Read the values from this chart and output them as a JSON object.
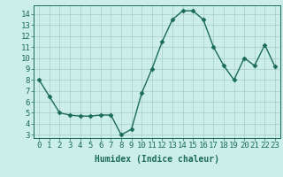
{
  "x": [
    0,
    1,
    2,
    3,
    4,
    5,
    6,
    7,
    8,
    9,
    10,
    11,
    12,
    13,
    14,
    15,
    16,
    17,
    18,
    19,
    20,
    21,
    22,
    23
  ],
  "y": [
    8,
    6.5,
    5,
    4.8,
    4.7,
    4.7,
    4.8,
    4.8,
    3.0,
    3.5,
    6.8,
    9.0,
    11.5,
    13.5,
    14.3,
    14.3,
    13.5,
    11.0,
    9.3,
    8.0,
    10.0,
    9.3,
    11.2,
    9.2
  ],
  "xlabel": "Humidex (Indice chaleur)",
  "ylim": [
    2.7,
    14.8
  ],
  "xlim": [
    -0.5,
    23.5
  ],
  "yticks": [
    3,
    4,
    5,
    6,
    7,
    8,
    9,
    10,
    11,
    12,
    13,
    14
  ],
  "xticks": [
    0,
    1,
    2,
    3,
    4,
    5,
    6,
    7,
    8,
    9,
    10,
    11,
    12,
    13,
    14,
    15,
    16,
    17,
    18,
    19,
    20,
    21,
    22,
    23
  ],
  "xtick_labels": [
    "0",
    "1",
    "2",
    "3",
    "4",
    "5",
    "6",
    "7",
    "8",
    "9",
    "10",
    "11",
    "12",
    "13",
    "14",
    "15",
    "16",
    "17",
    "18",
    "19",
    "20",
    "21",
    "22",
    "23"
  ],
  "line_color": "#1a6b5a",
  "marker": "D",
  "marker_size": 2.5,
  "line_width": 1.0,
  "bg_color": "#cceee8",
  "grid_color": "#aaccc8",
  "xlabel_fontsize": 7,
  "tick_fontsize": 6.5
}
